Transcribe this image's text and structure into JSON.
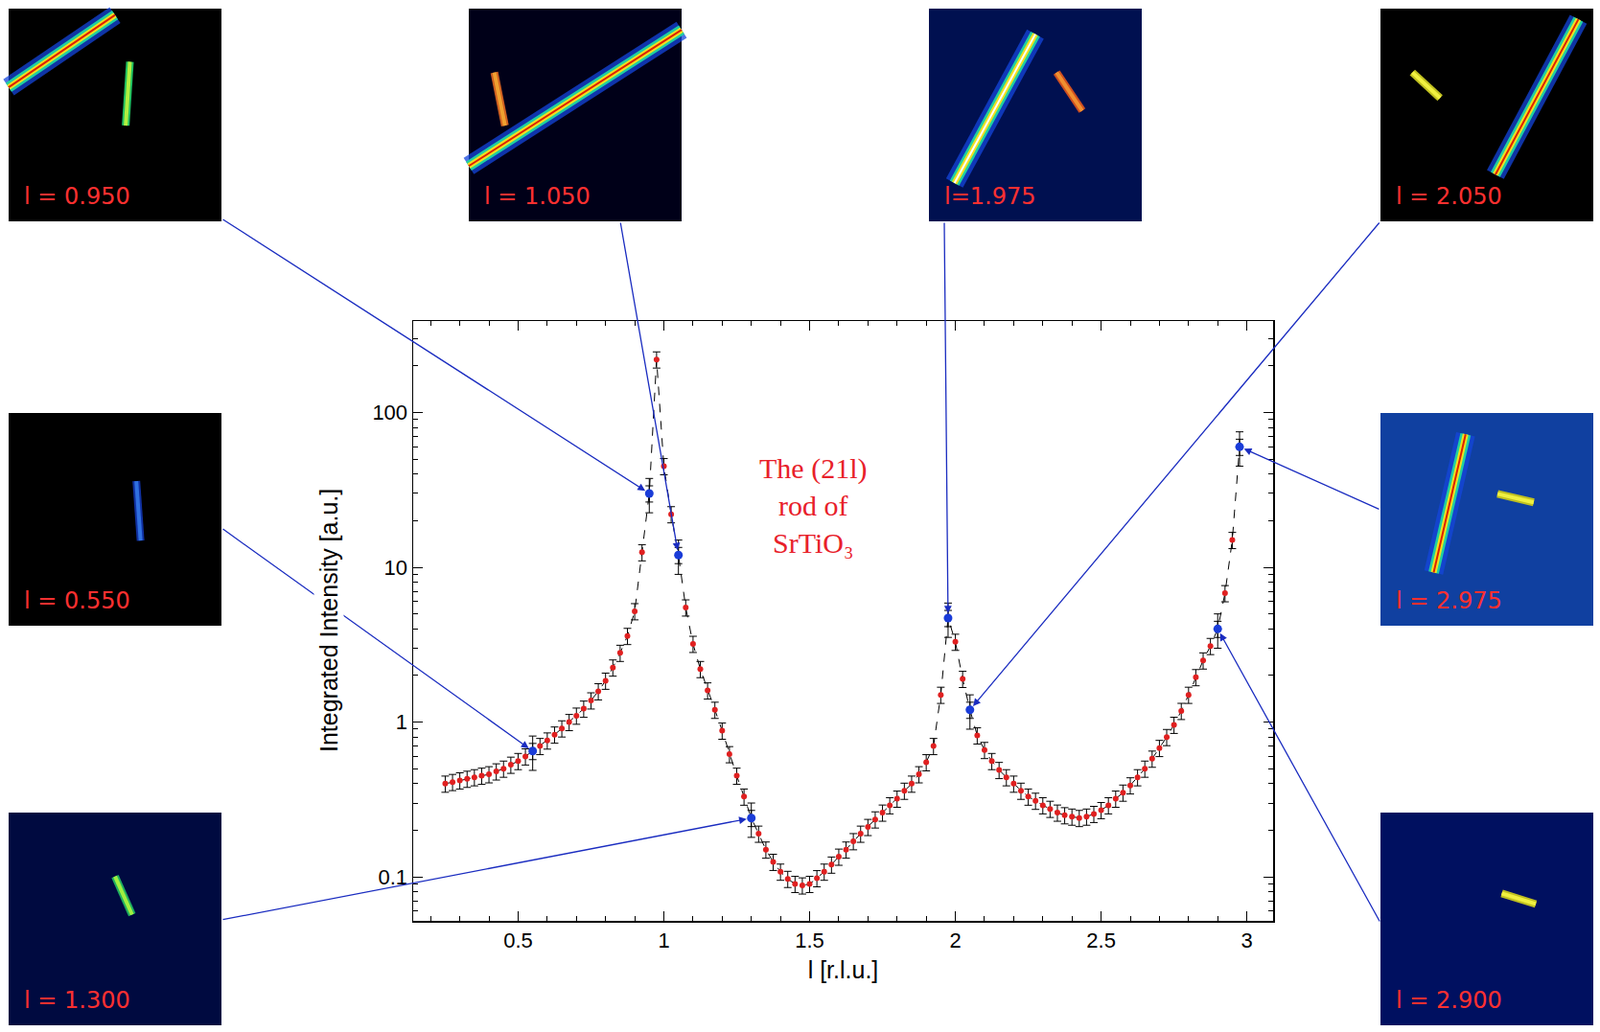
{
  "chart_data": {
    "type": "scatter",
    "log": "y",
    "grid": false,
    "x_label": "l [r.l.u.]",
    "y_label": "Integrated Intensity [a.u.]",
    "xlim": [
      0.14,
      3.09
    ],
    "ylim": [
      0.052,
      390
    ],
    "xticks": [
      0.5,
      1,
      1.5,
      2,
      2.5,
      3
    ],
    "yticks": [
      0.1,
      1,
      10,
      100
    ],
    "annotation": {
      "lines": [
        "The (21l)",
        "rod of",
        "SrTiO₃"
      ],
      "x": 1.51,
      "y": 25,
      "color": "#e8202a"
    },
    "series": [
      {
        "color": "#e02020",
        "marker": "circle",
        "line_style": "dashed",
        "error_percent": 12,
        "x": [
          0.25,
          0.275,
          0.3,
          0.325,
          0.35,
          0.375,
          0.4,
          0.425,
          0.45,
          0.475,
          0.5,
          0.525,
          0.55,
          0.575,
          0.6,
          0.625,
          0.65,
          0.675,
          0.7,
          0.725,
          0.75,
          0.775,
          0.8,
          0.825,
          0.85,
          0.875,
          0.9,
          0.925,
          0.95,
          0.975,
          1.0,
          1.025,
          1.05,
          1.075,
          1.1,
          1.125,
          1.15,
          1.175,
          1.2,
          1.225,
          1.25,
          1.275,
          1.3,
          1.325,
          1.35,
          1.375,
          1.4,
          1.425,
          1.45,
          1.475,
          1.5,
          1.525,
          1.55,
          1.575,
          1.6,
          1.625,
          1.65,
          1.675,
          1.7,
          1.725,
          1.75,
          1.775,
          1.8,
          1.825,
          1.85,
          1.875,
          1.9,
          1.925,
          1.95,
          1.975,
          2.0,
          2.025,
          2.05,
          2.075,
          2.1,
          2.125,
          2.15,
          2.175,
          2.2,
          2.225,
          2.25,
          2.275,
          2.3,
          2.325,
          2.35,
          2.375,
          2.4,
          2.425,
          2.45,
          2.475,
          2.5,
          2.525,
          2.55,
          2.575,
          2.6,
          2.625,
          2.65,
          2.675,
          2.7,
          2.725,
          2.75,
          2.775,
          2.8,
          2.825,
          2.85,
          2.875,
          2.9,
          2.925,
          2.95,
          2.975
        ],
        "values": [
          0.4,
          0.41,
          0.42,
          0.43,
          0.44,
          0.45,
          0.46,
          0.48,
          0.5,
          0.53,
          0.56,
          0.6,
          0.65,
          0.7,
          0.76,
          0.83,
          0.91,
          1.0,
          1.1,
          1.22,
          1.38,
          1.58,
          1.85,
          2.25,
          2.8,
          3.6,
          5.2,
          12.5,
          30,
          220,
          45,
          22,
          12,
          5.5,
          3.2,
          2.2,
          1.6,
          1.2,
          0.88,
          0.62,
          0.45,
          0.33,
          0.24,
          0.19,
          0.15,
          0.125,
          0.108,
          0.097,
          0.09,
          0.088,
          0.09,
          0.098,
          0.108,
          0.12,
          0.135,
          0.15,
          0.17,
          0.19,
          0.21,
          0.235,
          0.26,
          0.29,
          0.32,
          0.36,
          0.4,
          0.46,
          0.55,
          0.7,
          1.5,
          4.7,
          3.3,
          1.9,
          1.2,
          0.82,
          0.66,
          0.56,
          0.49,
          0.44,
          0.4,
          0.36,
          0.33,
          0.31,
          0.29,
          0.275,
          0.26,
          0.25,
          0.245,
          0.24,
          0.245,
          0.255,
          0.27,
          0.29,
          0.32,
          0.35,
          0.39,
          0.44,
          0.5,
          0.58,
          0.68,
          0.8,
          0.96,
          1.18,
          1.5,
          1.95,
          2.5,
          3.1,
          4.0,
          6.8,
          15,
          60
        ]
      },
      {
        "color": "#1a3cd8",
        "marker": "circle",
        "line_style": "none",
        "error_percent": 25,
        "x": [
          0.55,
          0.95,
          1.05,
          1.3,
          1.975,
          2.05,
          2.9,
          2.975
        ],
        "values": [
          0.65,
          30,
          12,
          0.24,
          4.7,
          1.2,
          4.0,
          60
        ]
      }
    ],
    "insets": [
      {
        "label": "l = 0.950",
        "x": 0.95,
        "y": 30
      },
      {
        "label": "l = 1.050",
        "x": 1.05,
        "y": 12
      },
      {
        "label": "l=1.975",
        "x": 1.975,
        "y": 4.7
      },
      {
        "label": "l = 2.050",
        "x": 2.05,
        "y": 1.2
      },
      {
        "label": "l = 0.550",
        "x": 0.55,
        "y": 0.65
      },
      {
        "label": "l = 1.300",
        "x": 1.3,
        "y": 0.24
      },
      {
        "label": "l = 2.975",
        "x": 2.975,
        "y": 60
      },
      {
        "label": "l = 2.900",
        "x": 2.9,
        "y": 4.0
      }
    ]
  }
}
